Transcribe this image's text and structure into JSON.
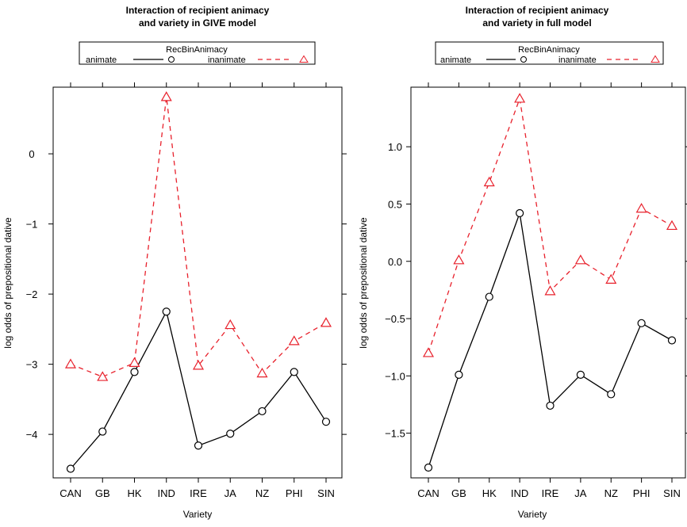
{
  "legend": {
    "title": "RecBinAnimacy",
    "items": [
      {
        "label": "animate",
        "color": "#000000",
        "dash": "solid",
        "marker": "circle"
      },
      {
        "label": "inanimate",
        "color": "#e8212c",
        "dash": "dashed",
        "marker": "triangle"
      }
    ]
  },
  "chart_data": [
    {
      "type": "line",
      "title_lines": [
        "Interaction of recipient animacy",
        "and variety in GIVE model"
      ],
      "xlabel": "Variety",
      "ylabel": "log odds of prepositional dative",
      "categories": [
        "CAN",
        "GB",
        "HK",
        "IND",
        "IRE",
        "JA",
        "NZ",
        "PHI",
        "SIN"
      ],
      "ylim": [
        -4.62,
        0.95
      ],
      "yticks": [
        0,
        -1,
        -2,
        -3,
        -4
      ],
      "ytick_labels": [
        "0",
        "−1",
        "−2",
        "−3",
        "−4"
      ],
      "series": [
        {
          "name": "animate",
          "values": [
            -4.49,
            -3.96,
            -3.11,
            -2.25,
            -4.16,
            -3.99,
            -3.67,
            -3.11,
            -3.82
          ]
        },
        {
          "name": "inanimate",
          "values": [
            -3.0,
            -3.18,
            -2.98,
            0.81,
            -3.02,
            -2.44,
            -3.13,
            -2.67,
            -2.41
          ]
        }
      ]
    },
    {
      "type": "line",
      "title_lines": [
        "Interaction of recipient animacy",
        "and variety in full model"
      ],
      "xlabel": "Variety",
      "ylabel": "log odds of prepositional dative",
      "categories": [
        "CAN",
        "GB",
        "HK",
        "IND",
        "IRE",
        "JA",
        "NZ",
        "PHI",
        "SIN"
      ],
      "ylim": [
        -1.89,
        1.52
      ],
      "yticks": [
        1.0,
        0.5,
        0.0,
        -0.5,
        -1.0,
        -1.5
      ],
      "ytick_labels": [
        "1.0",
        "0.5",
        "0.0",
        "−0.5",
        "−1.0",
        "−1.5"
      ],
      "series": [
        {
          "name": "animate",
          "values": [
            -1.8,
            -0.99,
            -0.31,
            0.42,
            -1.26,
            -0.99,
            -1.16,
            -0.54,
            -0.69
          ]
        },
        {
          "name": "inanimate",
          "values": [
            -0.8,
            0.01,
            0.69,
            1.42,
            -0.26,
            0.01,
            -0.16,
            0.46,
            0.31
          ]
        }
      ]
    }
  ]
}
